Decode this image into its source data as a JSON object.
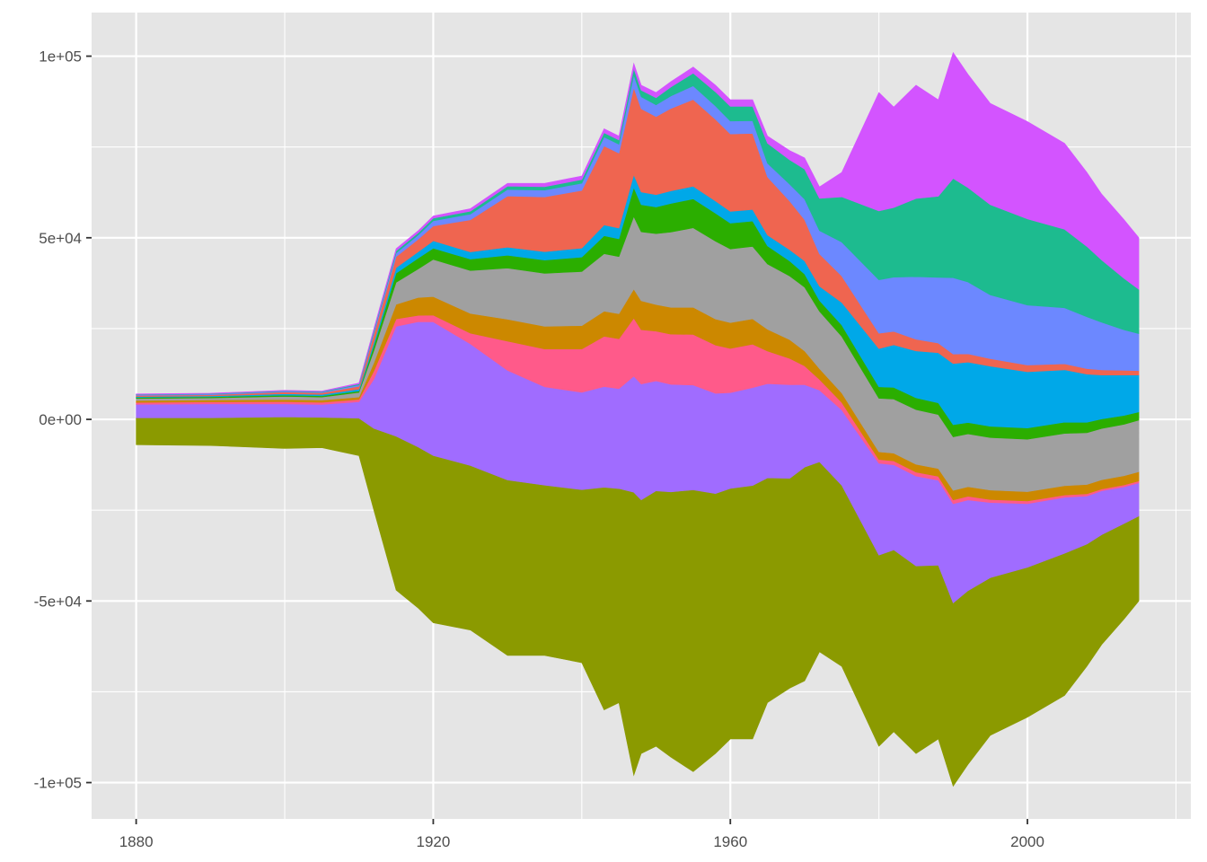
{
  "chart_data": {
    "type": "area",
    "subtype": "streamgraph",
    "title": "",
    "xlabel": "",
    "ylabel": "",
    "xlim": [
      1874,
      2022
    ],
    "ylim": [
      -110000,
      112000
    ],
    "x_ticks": [
      1880,
      1920,
      1960,
      2000
    ],
    "x_tick_labels": [
      "1880",
      "1920",
      "1960",
      "2000"
    ],
    "y_ticks": [
      -100000,
      -50000,
      0,
      50000,
      100000
    ],
    "y_tick_labels": [
      "-1e+05",
      "-5e+04",
      "0e+00",
      "5e+04",
      "1e+05"
    ],
    "grid": true,
    "legend": "none",
    "background": "#e5e5e5",
    "grid_color": "#ffffff",
    "envelope": {
      "x": [
        1880,
        1890,
        1900,
        1905,
        1910,
        1912,
        1915,
        1918,
        1920,
        1925,
        1930,
        1935,
        1940,
        1943,
        1945,
        1947,
        1948,
        1950,
        1952,
        1955,
        1958,
        1960,
        1963,
        1965,
        1968,
        1970,
        1972,
        1975,
        1980,
        1982,
        1985,
        1988,
        1990,
        1992,
        1995,
        2000,
        2005,
        2008,
        2010,
        2013,
        2015
      ],
      "upper": [
        7000,
        7200,
        8000,
        7800,
        10000,
        25000,
        47000,
        52000,
        56000,
        58000,
        65000,
        65000,
        67000,
        80000,
        78000,
        98000,
        92000,
        90000,
        93000,
        97000,
        92000,
        88000,
        88000,
        78000,
        74000,
        72000,
        64000,
        68000,
        90000,
        86000,
        92000,
        88000,
        101000,
        95000,
        87000,
        82000,
        76000,
        68000,
        62000,
        55000,
        50000
      ],
      "lower": [
        -7000,
        -7200,
        -8000,
        -7800,
        -10000,
        -25000,
        -47000,
        -52000,
        -56000,
        -58000,
        -65000,
        -65000,
        -67000,
        -80000,
        -78000,
        -98000,
        -92000,
        -90000,
        -93000,
        -97000,
        -92000,
        -88000,
        -88000,
        -78000,
        -74000,
        -72000,
        -64000,
        -68000,
        -90000,
        -86000,
        -92000,
        -88000,
        -101000,
        -95000,
        -87000,
        -82000,
        -76000,
        -68000,
        -62000,
        -55000,
        -50000
      ]
    },
    "series": [
      {
        "color": "#8b9a00",
        "values": [
          7000,
          7000,
          7200,
          7000,
          8000,
          20000,
          42000,
          45000,
          45000,
          46000,
          48000,
          45000,
          48000,
          62000,
          60000,
          78000,
          70000,
          72000,
          74000,
          78000,
          70000,
          68000,
          70000,
          62000,
          56000,
          57000,
          53000,
          48000,
          50000,
          47000,
          48000,
          45000,
          48000,
          46000,
          42000,
          40000,
          38000,
          33000,
          30000,
          26000,
          23000
        ]
      },
      {
        "color": "#a06cff",
        "values": [
          3500,
          3500,
          3000,
          3000,
          3500,
          12000,
          30000,
          35000,
          36000,
          34000,
          30000,
          26000,
          27000,
          28000,
          28000,
          32000,
          32000,
          31000,
          30000,
          29000,
          27000,
          26000,
          27000,
          26000,
          25000,
          22000,
          20000,
          20000,
          24000,
          22000,
          23000,
          22000,
          26000,
          24000,
          20000,
          17000,
          15000,
          13000,
          12000,
          10000,
          9000
        ]
      },
      {
        "color": "#ff5a8a",
        "values": [
          500,
          500,
          500,
          500,
          500,
          2000,
          2000,
          1800,
          1800,
          3000,
          8000,
          10000,
          12000,
          14000,
          14000,
          16000,
          15000,
          14000,
          14000,
          14000,
          13000,
          12000,
          12000,
          9000,
          7000,
          5000,
          3000,
          2000,
          1000,
          1000,
          1000,
          1000,
          1000,
          1000,
          800,
          700,
          600,
          600,
          500,
          500,
          500
        ]
      },
      {
        "color": "#cc8800",
        "values": [
          500,
          500,
          500,
          500,
          500,
          2000,
          4000,
          5000,
          5000,
          5500,
          6000,
          6000,
          6500,
          7000,
          7000,
          8000,
          8000,
          7500,
          7500,
          7500,
          7000,
          7000,
          7000,
          6000,
          5000,
          4000,
          3000,
          2500,
          2000,
          2000,
          2000,
          2000,
          2500,
          2500,
          2500,
          2500,
          2500,
          2500,
          2500,
          2500,
          2500
        ]
      },
      {
        "color": "#a0a0a0",
        "values": [
          500,
          500,
          700,
          700,
          1000,
          3000,
          6000,
          8000,
          10000,
          12000,
          14000,
          14000,
          15000,
          16000,
          16000,
          20000,
          19000,
          20000,
          21000,
          22000,
          21000,
          20000,
          20000,
          18000,
          17000,
          17000,
          16000,
          15000,
          14000,
          14000,
          14000,
          14000,
          14000,
          14000,
          14000,
          14000,
          14000,
          14000,
          14000,
          14000,
          14000
        ]
      },
      {
        "color": "#2bae00",
        "values": [
          300,
          300,
          300,
          300,
          300,
          1200,
          2500,
          3000,
          3000,
          3200,
          3500,
          3500,
          4000,
          5000,
          5000,
          8000,
          7500,
          7500,
          8000,
          8000,
          7500,
          7000,
          7000,
          5000,
          4000,
          3500,
          3000,
          3000,
          3000,
          3000,
          3000,
          3000,
          3200,
          3000,
          3000,
          3000,
          3000,
          2800,
          2600,
          2400,
          2200
        ]
      },
      {
        "color": "#00a8e8",
        "values": [
          200,
          200,
          300,
          300,
          400,
          800,
          1500,
          1800,
          2000,
          2000,
          2200,
          2200,
          2500,
          3000,
          3000,
          3500,
          3500,
          3500,
          3500,
          3500,
          3300,
          3200,
          3200,
          3000,
          3000,
          3500,
          4000,
          6000,
          10000,
          11000,
          12000,
          13000,
          16000,
          16000,
          16000,
          15000,
          14000,
          13000,
          12000,
          11000,
          10000
        ]
      },
      {
        "color": "#ef6550",
        "values": [
          300,
          300,
          400,
          400,
          600,
          2000,
          3000,
          3500,
          4000,
          9000,
          14000,
          14500,
          16000,
          22000,
          21000,
          24000,
          23000,
          22000,
          23000,
          24000,
          22000,
          21000,
          21000,
          16000,
          13000,
          11000,
          9000,
          7000,
          4000,
          3500,
          3000,
          2500,
          2500,
          2200,
          2000,
          1800,
          1600,
          1500,
          1400,
          1300,
          1200
        ]
      },
      {
        "color": "#6c88ff",
        "values": [
          200,
          200,
          200,
          200,
          300,
          600,
          1000,
          1200,
          1400,
          1600,
          1800,
          1800,
          2000,
          2500,
          2500,
          3500,
          3300,
          3300,
          3500,
          3800,
          3600,
          3500,
          3500,
          3800,
          4500,
          5500,
          6500,
          9000,
          14000,
          14000,
          16000,
          17000,
          20000,
          19000,
          17000,
          16000,
          15000,
          14000,
          13000,
          11000,
          10000
        ]
      },
      {
        "color": "#1dbb8f",
        "values": [
          100,
          100,
          100,
          100,
          200,
          400,
          600,
          600,
          700,
          800,
          900,
          900,
          1000,
          1200,
          1200,
          1800,
          1800,
          2000,
          2500,
          3500,
          3800,
          4000,
          4000,
          5500,
          6500,
          8000,
          9000,
          12000,
          18000,
          18000,
          20000,
          21000,
          26000,
          25000,
          24000,
          23000,
          21000,
          19000,
          17000,
          14000,
          12000
        ]
      },
      {
        "color": "#d354ff",
        "values": [
          100,
          100,
          100,
          100,
          200,
          400,
          600,
          600,
          600,
          700,
          800,
          900,
          1000,
          1100,
          1100,
          1400,
          1400,
          1500,
          1500,
          1700,
          1800,
          1800,
          1800,
          2000,
          2500,
          3000,
          3200,
          6500,
          31000,
          26000,
          29000,
          25000,
          33000,
          30000,
          27000,
          26000,
          23000,
          20000,
          18000,
          16000,
          14000
        ]
      }
    ]
  }
}
